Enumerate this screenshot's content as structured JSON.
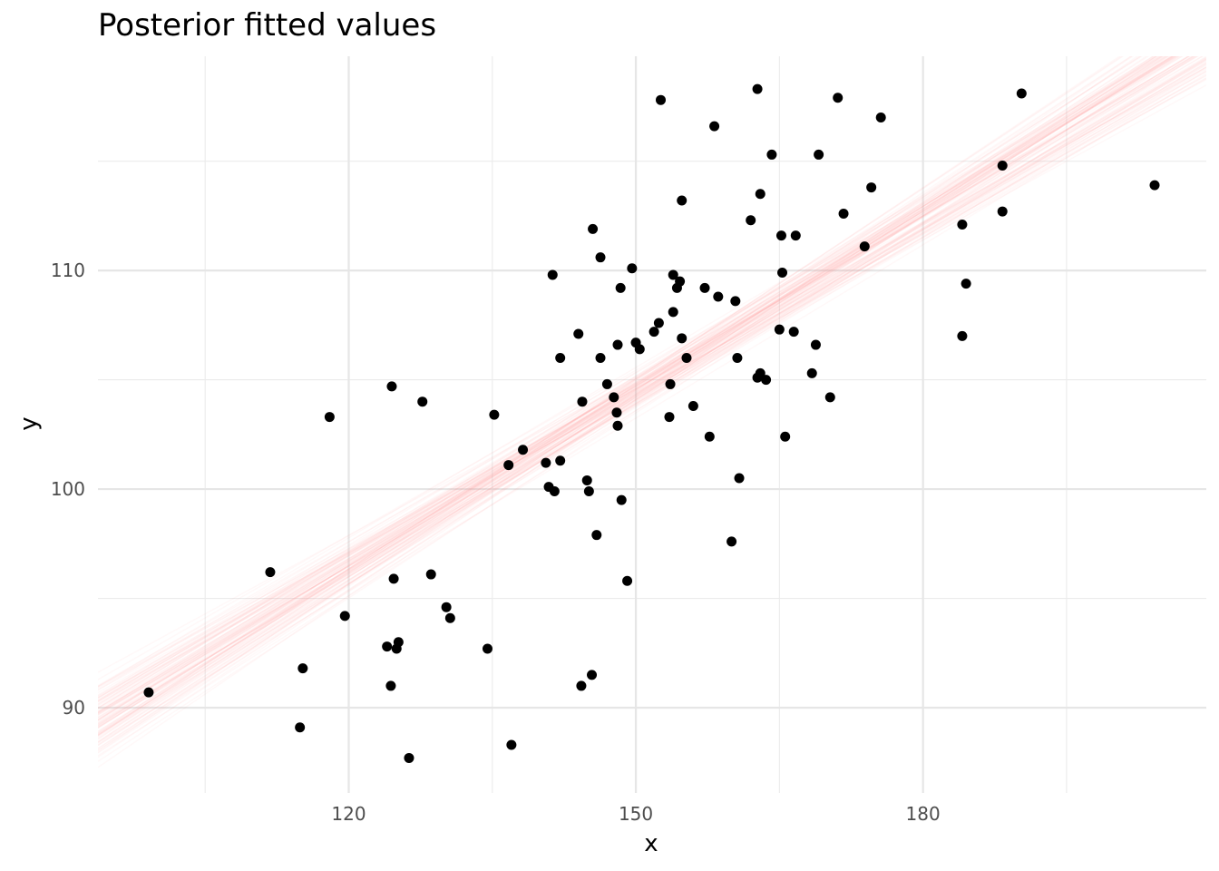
{
  "chart_data": {
    "type": "scatter",
    "title": "Posterior fitted values",
    "xlabel": "x",
    "ylabel": "y",
    "xlim": [
      93.8,
      209.6
    ],
    "ylim": [
      86.1,
      119.8
    ],
    "x_major_ticks": [
      120,
      150,
      180
    ],
    "x_minor_ticks": [
      105,
      135,
      165,
      195
    ],
    "y_major_ticks": [
      90,
      100,
      110
    ],
    "y_minor_ticks": [
      95,
      105,
      115
    ],
    "x_tick_labels": [
      "120",
      "150",
      "180"
    ],
    "y_tick_labels": [
      "90",
      "100",
      "110"
    ],
    "grid": true,
    "legend": "none",
    "point_color": "#000000",
    "line_color": "#ff9e9e",
    "posterior_lines": {
      "count": 100,
      "intercept_mean": 64.1,
      "slope_mean": 0.2688,
      "intercept_sd": 2.2,
      "slope_sd": 0.0145
    },
    "points": [
      {
        "x": 99.1,
        "y": 90.7
      },
      {
        "x": 111.8,
        "y": 96.2
      },
      {
        "x": 114.9,
        "y": 89.1
      },
      {
        "x": 115.2,
        "y": 91.8
      },
      {
        "x": 119.6,
        "y": 94.2
      },
      {
        "x": 118.0,
        "y": 103.3
      },
      {
        "x": 124.0,
        "y": 92.8
      },
      {
        "x": 124.4,
        "y": 91.0
      },
      {
        "x": 124.7,
        "y": 95.9
      },
      {
        "x": 124.5,
        "y": 104.7
      },
      {
        "x": 125.0,
        "y": 92.7
      },
      {
        "x": 125.2,
        "y": 93.0
      },
      {
        "x": 126.3,
        "y": 87.7
      },
      {
        "x": 127.7,
        "y": 104.0
      },
      {
        "x": 128.6,
        "y": 96.1
      },
      {
        "x": 130.2,
        "y": 94.6
      },
      {
        "x": 130.6,
        "y": 94.1
      },
      {
        "x": 134.5,
        "y": 92.7
      },
      {
        "x": 135.2,
        "y": 103.4
      },
      {
        "x": 136.7,
        "y": 101.1
      },
      {
        "x": 137.0,
        "y": 88.3
      },
      {
        "x": 138.2,
        "y": 101.8
      },
      {
        "x": 140.6,
        "y": 101.2
      },
      {
        "x": 140.9,
        "y": 100.1
      },
      {
        "x": 141.3,
        "y": 109.8
      },
      {
        "x": 141.5,
        "y": 99.9
      },
      {
        "x": 142.1,
        "y": 101.3
      },
      {
        "x": 142.1,
        "y": 106.0
      },
      {
        "x": 144.0,
        "y": 107.1
      },
      {
        "x": 144.4,
        "y": 104.0
      },
      {
        "x": 144.3,
        "y": 91.0
      },
      {
        "x": 144.9,
        "y": 100.4
      },
      {
        "x": 145.1,
        "y": 99.9
      },
      {
        "x": 145.4,
        "y": 91.5
      },
      {
        "x": 145.5,
        "y": 111.9
      },
      {
        "x": 145.9,
        "y": 97.9
      },
      {
        "x": 146.3,
        "y": 110.6
      },
      {
        "x": 146.3,
        "y": 106.0
      },
      {
        "x": 147.0,
        "y": 104.8
      },
      {
        "x": 147.7,
        "y": 104.2
      },
      {
        "x": 148.0,
        "y": 103.5
      },
      {
        "x": 148.1,
        "y": 102.9
      },
      {
        "x": 148.1,
        "y": 106.6
      },
      {
        "x": 148.4,
        "y": 109.2
      },
      {
        "x": 148.5,
        "y": 99.5
      },
      {
        "x": 149.1,
        "y": 95.8
      },
      {
        "x": 149.6,
        "y": 110.1
      },
      {
        "x": 150.0,
        "y": 106.7
      },
      {
        "x": 150.4,
        "y": 106.4
      },
      {
        "x": 151.9,
        "y": 107.2
      },
      {
        "x": 152.4,
        "y": 107.6
      },
      {
        "x": 152.6,
        "y": 117.8
      },
      {
        "x": 153.5,
        "y": 103.3
      },
      {
        "x": 153.6,
        "y": 104.8
      },
      {
        "x": 153.9,
        "y": 109.8
      },
      {
        "x": 153.9,
        "y": 108.1
      },
      {
        "x": 154.3,
        "y": 109.2
      },
      {
        "x": 154.6,
        "y": 109.5
      },
      {
        "x": 154.8,
        "y": 113.2
      },
      {
        "x": 154.8,
        "y": 106.9
      },
      {
        "x": 155.3,
        "y": 106.0
      },
      {
        "x": 156.0,
        "y": 103.8
      },
      {
        "x": 157.2,
        "y": 109.2
      },
      {
        "x": 157.7,
        "y": 102.4
      },
      {
        "x": 158.2,
        "y": 116.6
      },
      {
        "x": 158.6,
        "y": 108.8
      },
      {
        "x": 160.0,
        "y": 97.6
      },
      {
        "x": 160.4,
        "y": 108.6
      },
      {
        "x": 160.6,
        "y": 106.0
      },
      {
        "x": 160.8,
        "y": 100.5
      },
      {
        "x": 162.0,
        "y": 112.3
      },
      {
        "x": 162.7,
        "y": 118.3
      },
      {
        "x": 162.7,
        "y": 105.1
      },
      {
        "x": 163.0,
        "y": 105.3
      },
      {
        "x": 163.0,
        "y": 113.5
      },
      {
        "x": 163.6,
        "y": 105.0
      },
      {
        "x": 164.2,
        "y": 115.3
      },
      {
        "x": 165.0,
        "y": 107.3
      },
      {
        "x": 165.2,
        "y": 111.6
      },
      {
        "x": 165.3,
        "y": 109.9
      },
      {
        "x": 165.6,
        "y": 102.4
      },
      {
        "x": 166.5,
        "y": 107.2
      },
      {
        "x": 166.7,
        "y": 111.6
      },
      {
        "x": 168.4,
        "y": 105.3
      },
      {
        "x": 168.8,
        "y": 106.6
      },
      {
        "x": 169.1,
        "y": 115.3
      },
      {
        "x": 170.3,
        "y": 104.2
      },
      {
        "x": 171.1,
        "y": 117.9
      },
      {
        "x": 171.7,
        "y": 112.6
      },
      {
        "x": 173.9,
        "y": 111.1
      },
      {
        "x": 174.6,
        "y": 113.8
      },
      {
        "x": 175.6,
        "y": 117.0
      },
      {
        "x": 184.1,
        "y": 112.1
      },
      {
        "x": 184.1,
        "y": 107.0
      },
      {
        "x": 184.5,
        "y": 109.4
      },
      {
        "x": 188.3,
        "y": 114.8
      },
      {
        "x": 188.3,
        "y": 112.7
      },
      {
        "x": 190.3,
        "y": 118.1
      },
      {
        "x": 204.2,
        "y": 113.9
      }
    ]
  }
}
